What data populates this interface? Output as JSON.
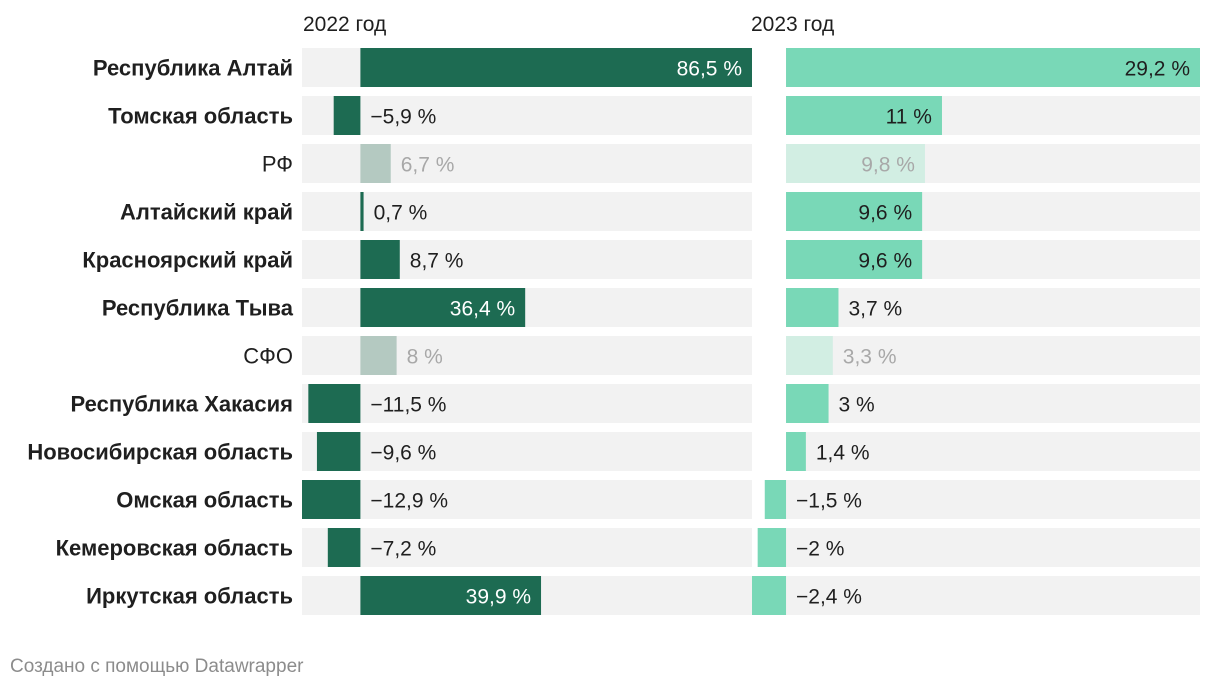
{
  "colors": {
    "track": "#f2f2f2",
    "bar_2022": "#1d6b52",
    "bar_2022_faded": "#b4c9c1",
    "bar_2023": "#79d8b7",
    "bar_2023_faded": "#d2eee3",
    "text": "#1f1f1f",
    "text_on_bar": "#ffffff",
    "text_faded": "#a8a8a8",
    "credit": "#8c8c8c"
  },
  "chart_data": {
    "type": "bar",
    "orientation": "horizontal",
    "categories": [
      "Республика Алтай",
      "Томская область",
      "РФ",
      "Алтайский край",
      "Красноярский край",
      "Республика Тыва",
      "СФО",
      "Республика Хакасия",
      "Новосибирская область",
      "Омская область",
      "Кемеровская область",
      "Иркутская область"
    ],
    "highlighted": [
      true,
      true,
      false,
      true,
      true,
      true,
      false,
      true,
      true,
      true,
      true,
      true
    ],
    "series": [
      {
        "name": "2022 год",
        "values": [
          86.5,
          -5.9,
          6.7,
          0.7,
          8.7,
          36.4,
          8,
          -11.5,
          -9.6,
          -12.9,
          -7.2,
          39.9
        ],
        "labels": [
          "86,5 %",
          "−5,9 %",
          "6,7 %",
          "0,7 %",
          "8,7 %",
          "36,4 %",
          "8 %",
          "−11,5 %",
          "−9,6 %",
          "−12,9 %",
          "−7,2 %",
          "39,9 %"
        ],
        "xlim": [
          -12.9,
          86.5
        ]
      },
      {
        "name": "2023 год",
        "values": [
          29.2,
          11,
          9.8,
          9.6,
          9.6,
          3.7,
          3.3,
          3,
          1.4,
          -1.5,
          -2,
          -2.4
        ],
        "labels": [
          "29,2 %",
          "11 %",
          "9,8 %",
          "9,6 %",
          "9,6 %",
          "3,7 %",
          "3,3 %",
          "3 %",
          "1,4 %",
          "−1,5 %",
          "−2 %",
          "−2,4 %"
        ],
        "xlim": [
          -2.4,
          29.2
        ]
      }
    ]
  },
  "credit": "Создано с помощью Datawrapper"
}
